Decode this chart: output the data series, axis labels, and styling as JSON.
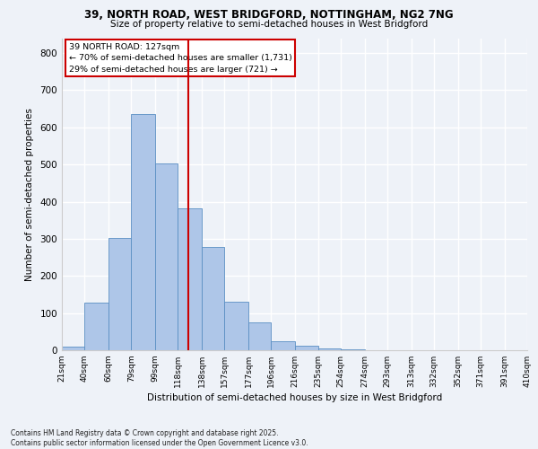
{
  "title_line1": "39, NORTH ROAD, WEST BRIDGFORD, NOTTINGHAM, NG2 7NG",
  "title_line2": "Size of property relative to semi-detached houses in West Bridgford",
  "xlabel": "Distribution of semi-detached houses by size in West Bridgford",
  "ylabel": "Number of semi-detached properties",
  "footer": "Contains HM Land Registry data © Crown copyright and database right 2025.\nContains public sector information licensed under the Open Government Licence v3.0.",
  "bin_labels": [
    "21sqm",
    "40sqm",
    "60sqm",
    "79sqm",
    "99sqm",
    "118sqm",
    "138sqm",
    "157sqm",
    "177sqm",
    "196sqm",
    "216sqm",
    "235sqm",
    "254sqm",
    "274sqm",
    "293sqm",
    "313sqm",
    "332sqm",
    "352sqm",
    "371sqm",
    "391sqm",
    "410sqm"
  ],
  "bin_edges": [
    21,
    40,
    60,
    79,
    99,
    118,
    138,
    157,
    177,
    196,
    216,
    235,
    254,
    274,
    293,
    313,
    332,
    352,
    371,
    391,
    410
  ],
  "bar_heights": [
    10,
    128,
    302,
    635,
    502,
    383,
    277,
    131,
    74,
    25,
    13,
    5,
    2,
    0,
    0,
    0,
    0,
    0,
    0,
    0
  ],
  "bar_color": "#aec6e8",
  "bar_edge_color": "#5a8fc3",
  "vline_x": 127,
  "annotation_title": "39 NORTH ROAD: 127sqm",
  "annotation_line1": "← 70% of semi-detached houses are smaller (1,731)",
  "annotation_line2": "29% of semi-detached houses are larger (721) →",
  "vline_color": "#cc0000",
  "annotation_box_color": "#cc0000",
  "ylim": [
    0,
    840
  ],
  "yticks": [
    0,
    100,
    200,
    300,
    400,
    500,
    600,
    700,
    800
  ],
  "background_color": "#eef2f8",
  "grid_color": "#ffffff"
}
